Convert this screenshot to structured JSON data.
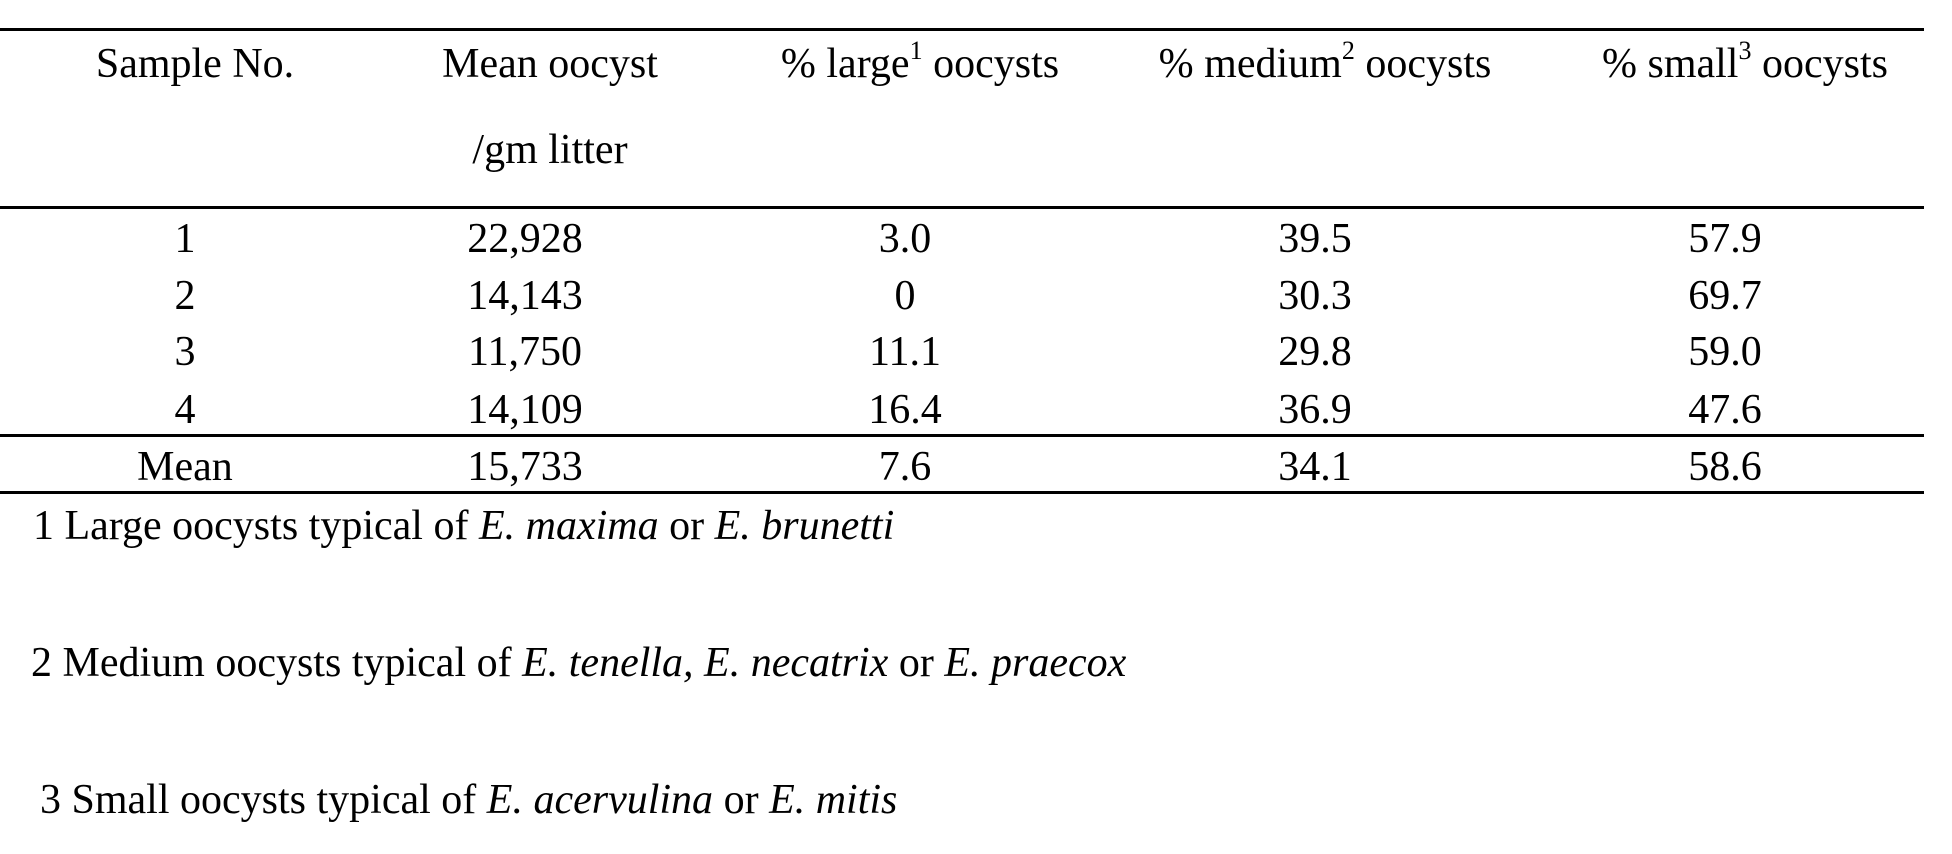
{
  "table": {
    "headers": {
      "sample_no": "Sample No.",
      "mean_oocyst_line1": "Mean oocyst",
      "mean_oocyst_line2": "/gm litter",
      "large_prefix": "% large",
      "large_sup": "1",
      "large_suffix": " oocysts",
      "medium_prefix": "% medium",
      "medium_sup": "2",
      "medium_suffix": " oocysts",
      "small_prefix": "% small",
      "small_sup": "3",
      "small_suffix": " oocysts"
    },
    "rows": [
      {
        "sample": "1",
        "mean_oocyst": "22,928",
        "large": "3.0",
        "medium": "39.5",
        "small": "57.9"
      },
      {
        "sample": "2",
        "mean_oocyst": "14,143",
        "large": "0",
        "medium": "30.3",
        "small": "69.7"
      },
      {
        "sample": "3",
        "mean_oocyst": "11,750",
        "large": "11.1",
        "medium": "29.8",
        "small": "59.0"
      },
      {
        "sample": "4",
        "mean_oocyst": "14,109",
        "large": "16.4",
        "medium": "36.9",
        "small": "47.6"
      }
    ],
    "mean_row": {
      "sample": "Mean",
      "mean_oocyst": "15,733",
      "large": "7.6",
      "medium": "34.1",
      "small": "58.6"
    }
  },
  "footnotes": {
    "note1": {
      "num": "1",
      "text_a": " Large oocysts typical of ",
      "sp1": "E. maxima",
      "text_b": " or ",
      "sp2": "E. brunetti"
    },
    "note2": {
      "num": "2",
      "text_a": " Medium oocysts typical of ",
      "sp1": "E. tenella, E. necatrix",
      "text_b": " or ",
      "sp2": "E. praecox"
    },
    "note3": {
      "num": "3",
      "text_a": " Small oocysts typical of ",
      "sp1": "E. acervulina",
      "text_b": " or ",
      "sp2": "E. mitis"
    }
  }
}
